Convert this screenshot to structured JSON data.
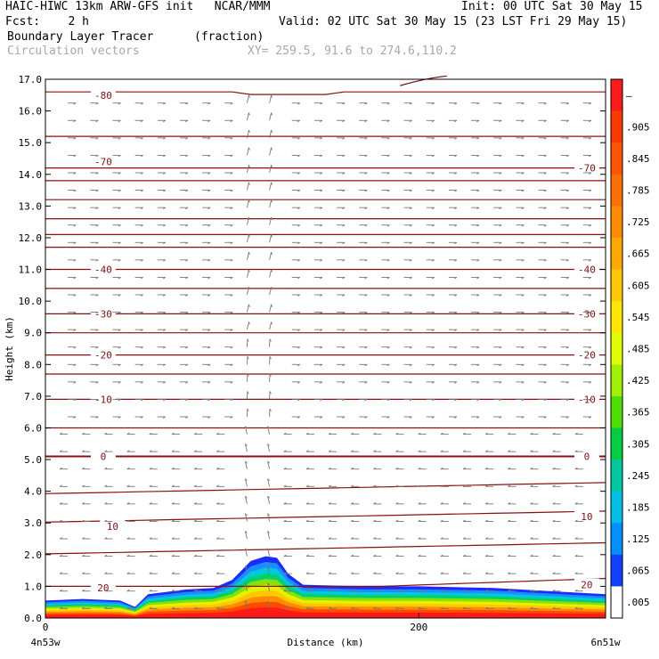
{
  "header": {
    "line1_left": "HAIC-HIWC 13km ARW-GFS init   NCAR/MMM",
    "line1_right": "Init: 00 UTC Sat 30 May 15",
    "line2_left": "Fcst:    2 h",
    "line2_right": "Valid: 02 UTC Sat 30 May 15 (23 LST Fri 29 May 15)",
    "line3_left": "Boundary Layer Tracer",
    "line3_units": "(fraction)",
    "line4_left": "Circulation vectors",
    "line4_xy": "XY= 259.5, 91.6 to 274.6,110.2"
  },
  "chart_data": {
    "type": "heatmap",
    "ylabel": "Height (km)",
    "xlabel": "Distance (km)",
    "xlim": [
      0,
      300
    ],
    "ylim": [
      0,
      17
    ],
    "xticks": [
      {
        "value": 0,
        "label": "0"
      },
      {
        "value": 200,
        "label": "200"
      }
    ],
    "x_end_labels": {
      "left": "4n53w",
      "right": "6n51w"
    },
    "yticks": [
      "0.0",
      "1.0",
      "2.0",
      "3.0",
      "4.0",
      "5.0",
      "6.0",
      "7.0",
      "8.0",
      "9.0",
      "10.0",
      "11.0",
      "12.0",
      "13.0",
      "14.0",
      "15.0",
      "16.0",
      "17.0"
    ],
    "colorbar": {
      "labels": [
        "–",
        ".905",
        ".845",
        ".785",
        ".725",
        ".665",
        ".605",
        ".545",
        ".485",
        ".425",
        ".365",
        ".305",
        ".245",
        ".185",
        ".125",
        ".065",
        ".005"
      ],
      "colors": [
        "#ff1a1a",
        "#ff3a00",
        "#ff5500",
        "#ff7000",
        "#ff8c00",
        "#ffa800",
        "#ffc800",
        "#ffe600",
        "#e0ff00",
        "#a0f000",
        "#50e000",
        "#00d040",
        "#00c8a0",
        "#00c0e8",
        "#0090ff",
        "#1040ff",
        "#ffffff"
      ]
    },
    "isotherm_labels_left": [
      {
        "y": 16.5,
        "label": "-80"
      },
      {
        "y": 14.4,
        "label": "-70"
      },
      {
        "y": 11.0,
        "label": "-40"
      },
      {
        "y": 9.6,
        "label": "-30"
      },
      {
        "y": 8.3,
        "label": "-20"
      },
      {
        "y": 6.9,
        "label": "-10"
      },
      {
        "y": 5.1,
        "label": "0"
      },
      {
        "y": 2.9,
        "label": "10"
      },
      {
        "y": 0.95,
        "label": "20"
      }
    ],
    "isotherm_labels_right": [
      {
        "y": 14.2,
        "label": "-70"
      },
      {
        "y": 11.0,
        "label": "-40"
      },
      {
        "y": 9.6,
        "label": "-30"
      },
      {
        "y": 8.3,
        "label": "-20"
      },
      {
        "y": 6.9,
        "label": "-10"
      },
      {
        "y": 5.1,
        "label": "0"
      },
      {
        "y": 3.2,
        "label": "10"
      },
      {
        "y": 1.05,
        "label": "20"
      }
    ],
    "tracer_top_profile": [
      [
        0,
        0.55
      ],
      [
        20,
        0.6
      ],
      [
        40,
        0.55
      ],
      [
        48,
        0.35
      ],
      [
        55,
        0.75
      ],
      [
        75,
        0.9
      ],
      [
        90,
        0.95
      ],
      [
        100,
        1.2
      ],
      [
        110,
        1.8
      ],
      [
        118,
        1.95
      ],
      [
        124,
        1.9
      ],
      [
        130,
        1.4
      ],
      [
        138,
        1.05
      ],
      [
        170,
        1.0
      ],
      [
        200,
        1.0
      ],
      [
        240,
        0.95
      ],
      [
        270,
        0.85
      ],
      [
        300,
        0.75
      ]
    ]
  }
}
